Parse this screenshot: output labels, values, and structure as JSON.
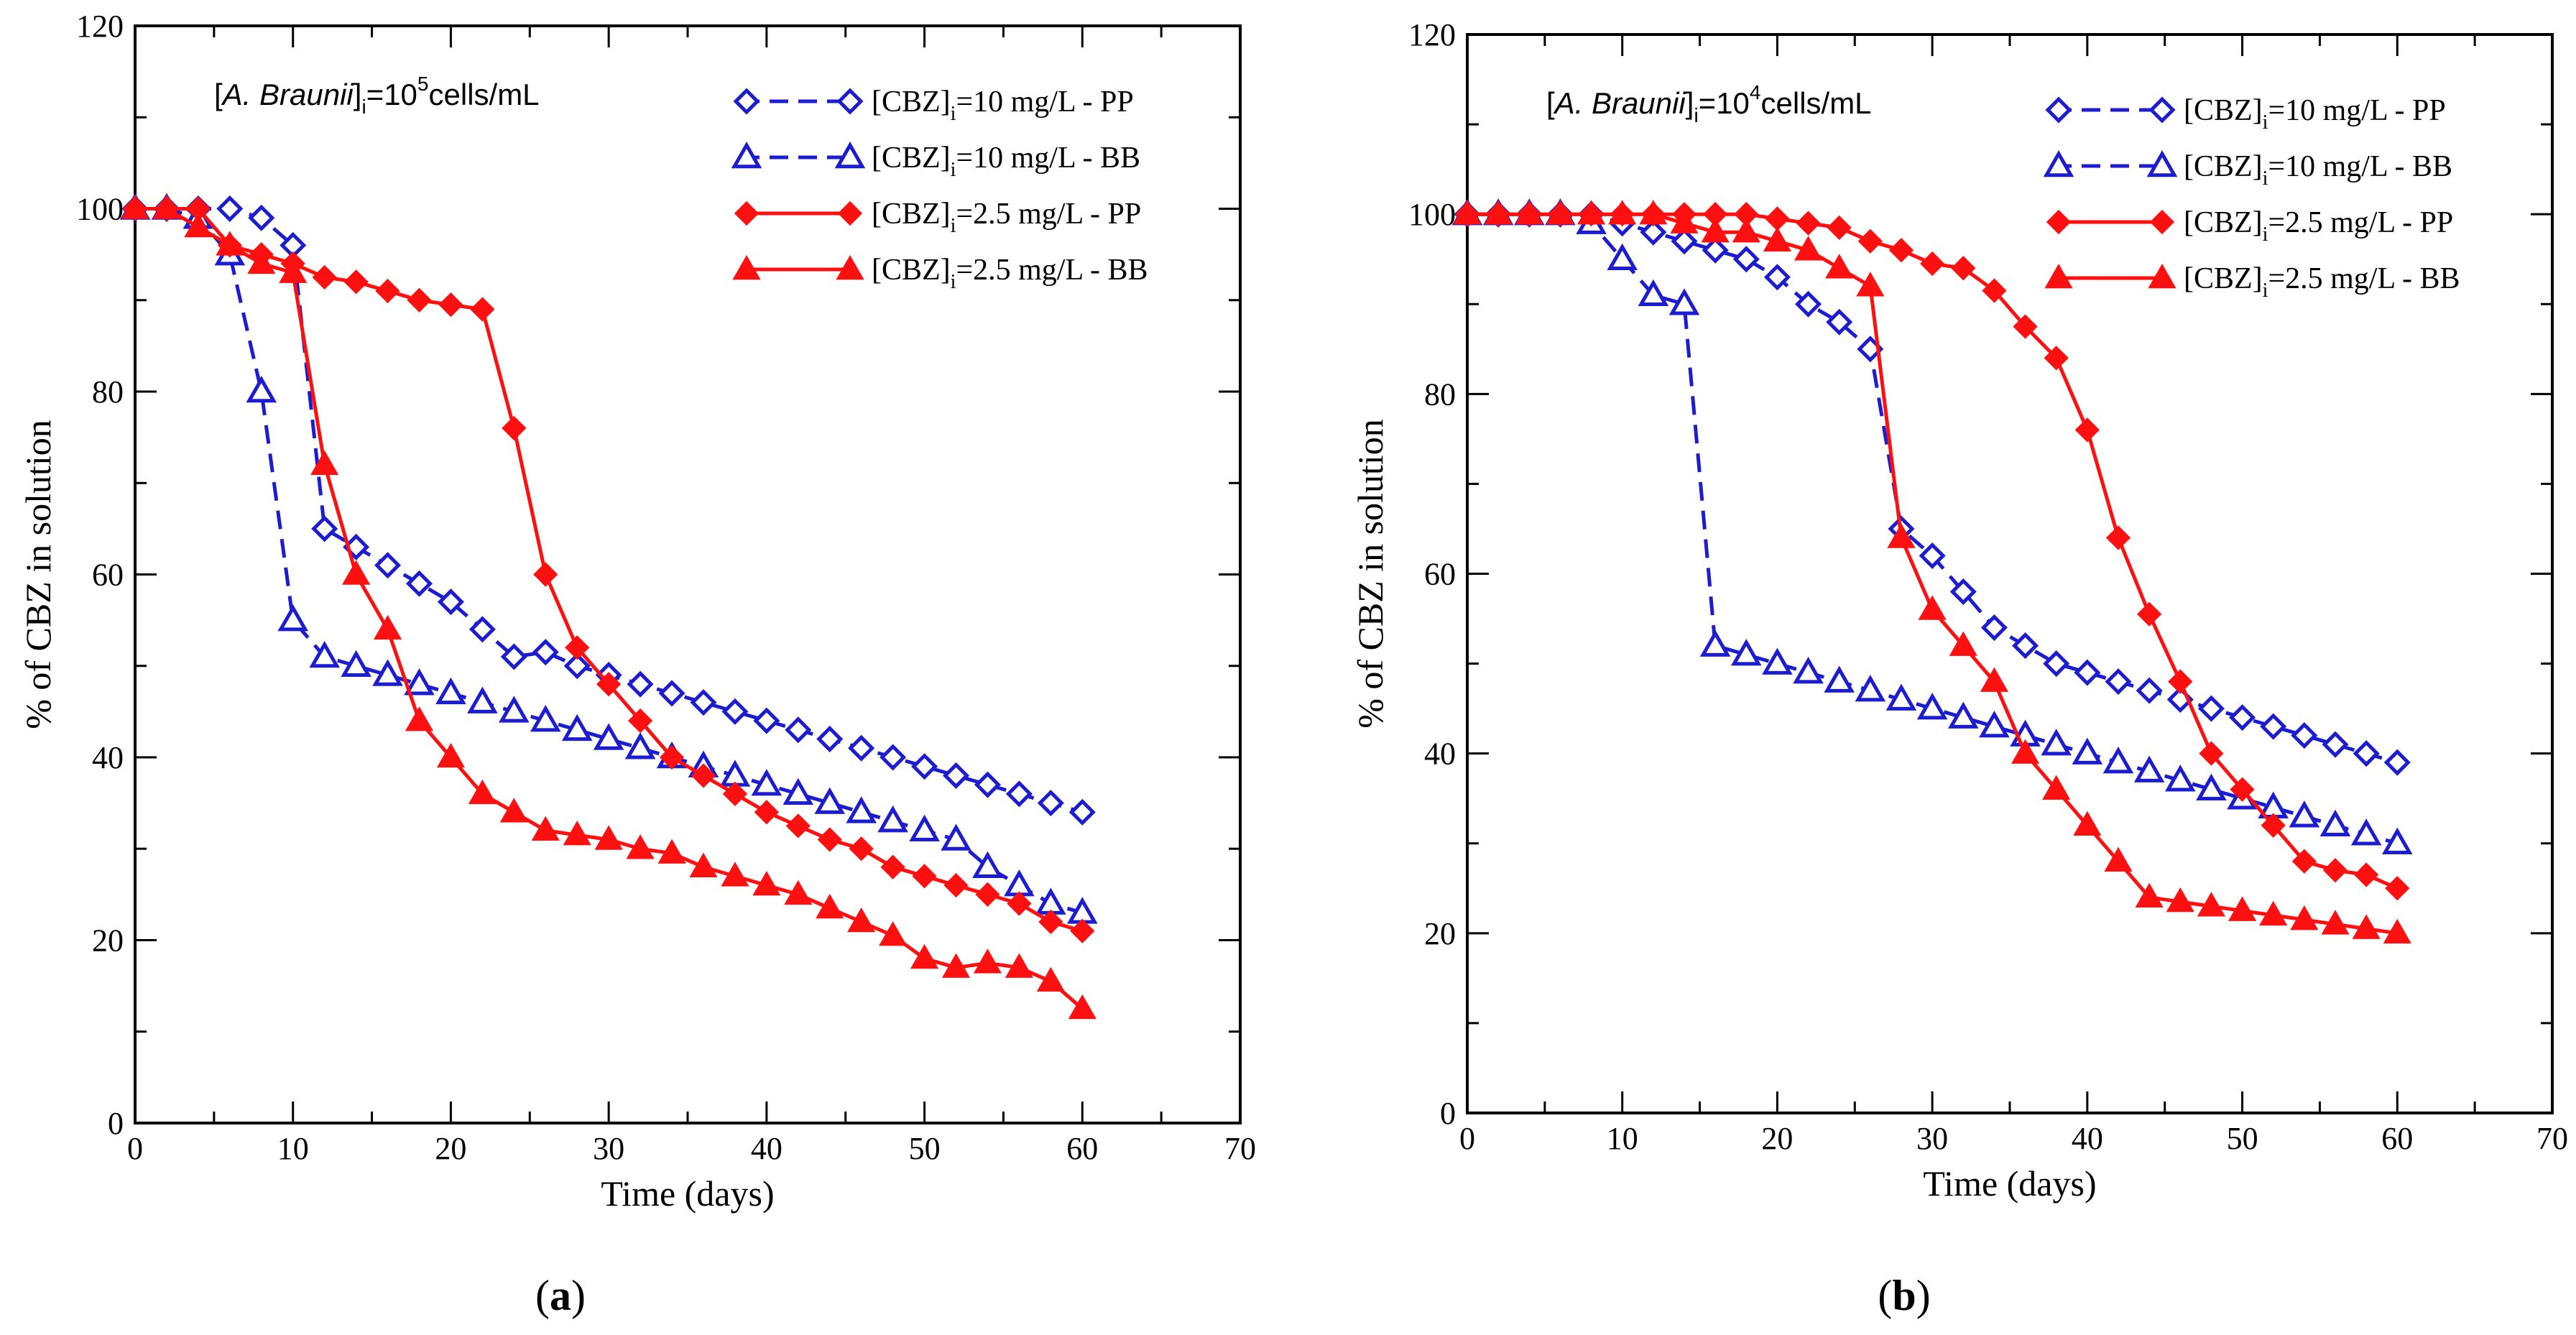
{
  "colors": {
    "blue": "#1c1cd0",
    "red": "#ff1010",
    "axis": "#000000"
  },
  "panel_captions": [
    "(a)",
    "(b)"
  ],
  "chart_data": [
    {
      "type": "line",
      "caption": "(a)",
      "annotation": {
        "species": "A. Braunii",
        "sub": "i",
        "lead": "=10",
        "exp": "5",
        "unit": "cells/mL"
      },
      "xlabel": "Time (days)",
      "ylabel": "% of CBZ in solution",
      "xlim": [
        0,
        70
      ],
      "ylim": [
        0,
        120
      ],
      "xticks": [
        "0",
        "10",
        "20",
        "30",
        "40",
        "50",
        "60",
        "70"
      ],
      "yticks": [
        "0",
        "20",
        "40",
        "60",
        "80",
        "100",
        "120"
      ],
      "legend_position": "top-right",
      "series": [
        {
          "name_base": "[CBZ]",
          "name_sub": "i",
          "name_rest": "=10 mg/L - PP",
          "color": "blue",
          "dash": true,
          "marker": "diamond-open",
          "x": [
            0,
            2,
            4,
            6,
            8,
            10,
            12,
            14,
            16,
            18,
            20,
            22,
            24,
            26,
            28,
            30,
            32,
            34,
            36,
            38,
            40,
            42,
            44,
            46,
            48,
            50,
            52,
            54,
            56,
            58,
            60
          ],
          "y": [
            100,
            100,
            100,
            100,
            99,
            96,
            65,
            63,
            61,
            59,
            57,
            54,
            51,
            51.5,
            50,
            49,
            48,
            47,
            46,
            45,
            44,
            43,
            42,
            41,
            40,
            39,
            38,
            37,
            36,
            35,
            34
          ]
        },
        {
          "name_base": "[CBZ]",
          "name_sub": "i",
          "name_rest": "=10 mg/L - BB",
          "color": "blue",
          "dash": true,
          "marker": "triangle-open",
          "x": [
            0,
            2,
            4,
            6,
            8,
            10,
            12,
            14,
            16,
            18,
            20,
            22,
            24,
            26,
            28,
            30,
            32,
            34,
            36,
            38,
            40,
            42,
            44,
            46,
            48,
            50,
            52,
            54,
            56,
            58,
            60
          ],
          "y": [
            100,
            100,
            99,
            95,
            80,
            55,
            51,
            50,
            49,
            48,
            47,
            46,
            45,
            44,
            43,
            42,
            41,
            40,
            39,
            38,
            37,
            36,
            35,
            34,
            33,
            32,
            31,
            28,
            26,
            24,
            23
          ]
        },
        {
          "name_base": "[CBZ]",
          "name_sub": "i",
          "name_rest": "=2.5 mg/L - PP",
          "color": "red",
          "dash": false,
          "marker": "diamond-filled",
          "x": [
            0,
            2,
            4,
            6,
            8,
            10,
            12,
            14,
            16,
            18,
            20,
            22,
            24,
            26,
            28,
            30,
            32,
            34,
            36,
            38,
            40,
            42,
            44,
            46,
            48,
            50,
            52,
            54,
            56,
            58,
            60
          ],
          "y": [
            100,
            100,
            100,
            96,
            95,
            94,
            92.5,
            92,
            91,
            90,
            89.5,
            89,
            76,
            60,
            52,
            48,
            44,
            40,
            38,
            36,
            34,
            32.5,
            31,
            30,
            28,
            27,
            26,
            25,
            24,
            22,
            21
          ]
        },
        {
          "name_base": "[CBZ]",
          "name_sub": "i",
          "name_rest": "=2.5 mg/L - BB",
          "color": "red",
          "dash": false,
          "marker": "triangle-filled",
          "x": [
            0,
            2,
            4,
            6,
            8,
            10,
            12,
            14,
            16,
            18,
            20,
            22,
            24,
            26,
            28,
            30,
            32,
            34,
            36,
            38,
            40,
            42,
            44,
            46,
            48,
            50,
            52,
            54,
            56,
            58,
            60
          ],
          "y": [
            100,
            100,
            98,
            96,
            94,
            93,
            72,
            60,
            54,
            44,
            40,
            36,
            34,
            32,
            31.5,
            31,
            30,
            29.5,
            28,
            27,
            26,
            25,
            23.5,
            22,
            20.5,
            18,
            17,
            17.5,
            17,
            15.5,
            12.5
          ]
        }
      ]
    },
    {
      "type": "line",
      "caption": "(b)",
      "annotation": {
        "species": "A. Braunii",
        "sub": "i",
        "lead": "=10",
        "exp": "4",
        "unit": "cells/mL"
      },
      "xlabel": "Time (days)",
      "ylabel": "% of CBZ in solution",
      "xlim": [
        0,
        70
      ],
      "ylim": [
        0,
        120
      ],
      "xticks": [
        "0",
        "10",
        "20",
        "30",
        "40",
        "50",
        "60",
        "70"
      ],
      "yticks": [
        "0",
        "20",
        "40",
        "60",
        "80",
        "100",
        "120"
      ],
      "legend_position": "top-right",
      "series": [
        {
          "name_base": "[CBZ]",
          "name_sub": "i",
          "name_rest": "=10 mg/L - PP",
          "color": "blue",
          "dash": true,
          "marker": "diamond-open",
          "x": [
            0,
            2,
            4,
            6,
            8,
            10,
            12,
            14,
            16,
            18,
            20,
            22,
            24,
            26,
            28,
            30,
            32,
            34,
            36,
            38,
            40,
            42,
            44,
            46,
            48,
            50,
            52,
            54,
            56,
            58,
            60
          ],
          "y": [
            100,
            100,
            100,
            100,
            100,
            99,
            98,
            97,
            96,
            95,
            93,
            90,
            88,
            85,
            65,
            62,
            58,
            54,
            52,
            50,
            49,
            48,
            47,
            46,
            45,
            44,
            43,
            42,
            41,
            40,
            39
          ]
        },
        {
          "name_base": "[CBZ]",
          "name_sub": "i",
          "name_rest": "=10 mg/L - BB",
          "color": "blue",
          "dash": true,
          "marker": "triangle-open",
          "x": [
            0,
            2,
            4,
            6,
            8,
            10,
            12,
            14,
            16,
            18,
            20,
            22,
            24,
            26,
            28,
            30,
            32,
            34,
            36,
            38,
            40,
            42,
            44,
            46,
            48,
            50,
            52,
            54,
            56,
            58,
            60
          ],
          "y": [
            100,
            100,
            100,
            100,
            99,
            95,
            91,
            90,
            52,
            51,
            50,
            49,
            48,
            47,
            46,
            45,
            44,
            43,
            42,
            41,
            40,
            39,
            38,
            37,
            36,
            35,
            34,
            33,
            32,
            31,
            30
          ]
        },
        {
          "name_base": "[CBZ]",
          "name_sub": "i",
          "name_rest": "=2.5 mg/L - PP",
          "color": "red",
          "dash": false,
          "marker": "diamond-filled",
          "x": [
            0,
            2,
            4,
            6,
            8,
            10,
            12,
            14,
            16,
            18,
            20,
            22,
            24,
            26,
            28,
            30,
            32,
            34,
            36,
            38,
            40,
            42,
            44,
            46,
            48,
            50,
            52,
            54,
            56,
            58,
            60
          ],
          "y": [
            100,
            100,
            100,
            100,
            100,
            100,
            100,
            100,
            100,
            100,
            99.5,
            99,
            98.5,
            97,
            96,
            94.5,
            94,
            91.5,
            87.5,
            84,
            76,
            64,
            55.5,
            48,
            40,
            36,
            32,
            28,
            27,
            26.5,
            25
          ]
        },
        {
          "name_base": "[CBZ]",
          "name_sub": "i",
          "name_rest": "=2.5 mg/L - BB",
          "color": "red",
          "dash": false,
          "marker": "triangle-filled",
          "x": [
            0,
            2,
            4,
            6,
            8,
            10,
            12,
            14,
            16,
            18,
            20,
            22,
            24,
            26,
            28,
            30,
            32,
            34,
            36,
            38,
            40,
            42,
            44,
            46,
            48,
            50,
            52,
            54,
            56,
            58,
            60
          ],
          "y": [
            100,
            100,
            100,
            100,
            100,
            100,
            100,
            99,
            98,
            98,
            97,
            96,
            94,
            92,
            64,
            56,
            52,
            48,
            40,
            36,
            32,
            28,
            24,
            23.5,
            23,
            22.5,
            22,
            21.5,
            21,
            20.5,
            20
          ]
        }
      ]
    }
  ]
}
